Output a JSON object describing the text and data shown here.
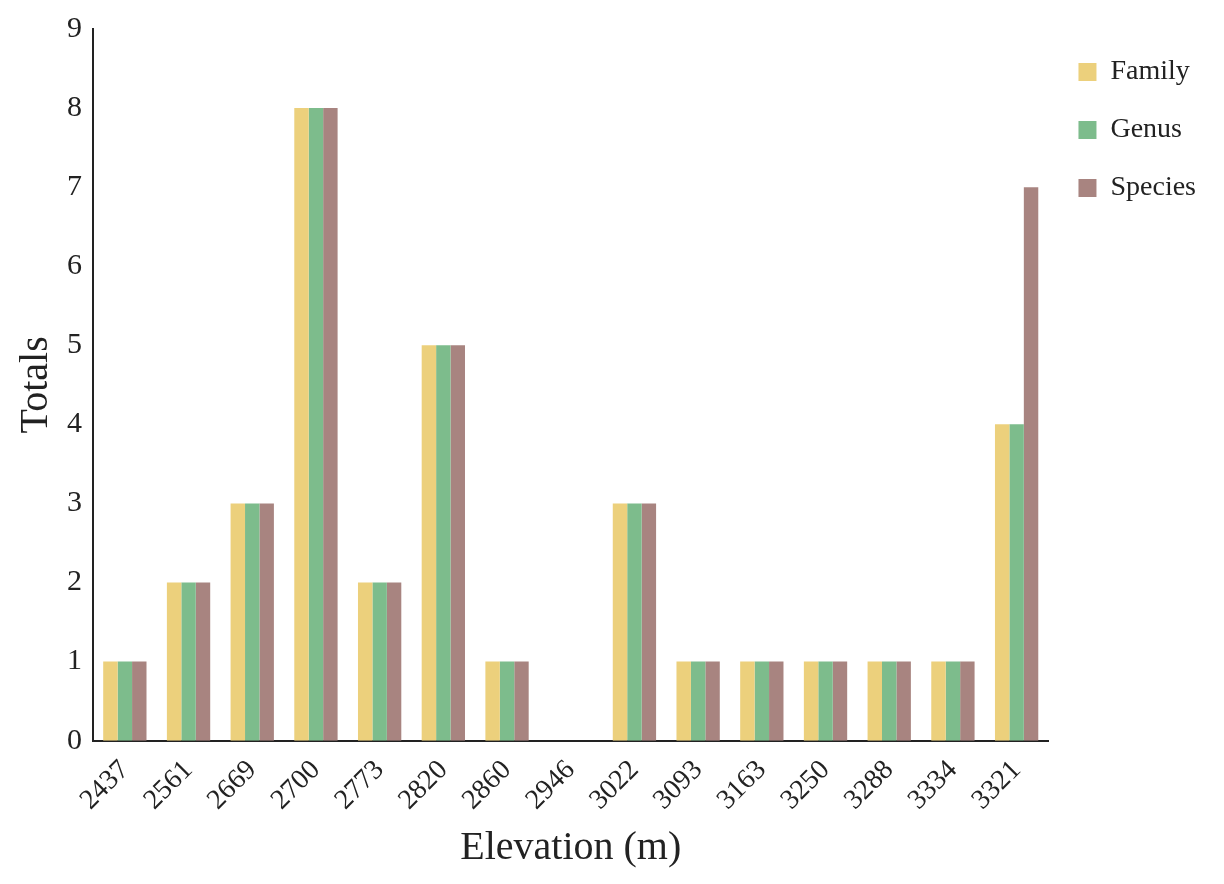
{
  "chart_data": {
    "type": "bar",
    "xlabel": "Elevation (m)",
    "ylabel": "Totals",
    "categories": [
      "2437",
      "2561",
      "2669",
      "2700",
      "2773",
      "2820",
      "2860",
      "2946",
      "3022",
      "3093",
      "3163",
      "3250",
      "3288",
      "3334",
      "3321"
    ],
    "series": [
      {
        "name": "Family",
        "color": "#ecd07c",
        "values": [
          1,
          2,
          3,
          8,
          2,
          5,
          1,
          0,
          3,
          1,
          1,
          1,
          1,
          1,
          4
        ]
      },
      {
        "name": "Genus",
        "color": "#7dbc8c",
        "values": [
          1,
          2,
          3,
          8,
          2,
          5,
          1,
          0,
          3,
          1,
          1,
          1,
          1,
          1,
          4
        ]
      },
      {
        "name": "Species",
        "color": "#a88480",
        "values": [
          1,
          2,
          3,
          8,
          2,
          5,
          1,
          0,
          3,
          1,
          1,
          1,
          1,
          1,
          7
        ]
      }
    ],
    "ylim": [
      0,
      9
    ],
    "yticks": [
      0,
      1,
      2,
      3,
      4,
      5,
      6,
      7,
      8,
      9
    ],
    "grid": false,
    "legend": "top right"
  }
}
